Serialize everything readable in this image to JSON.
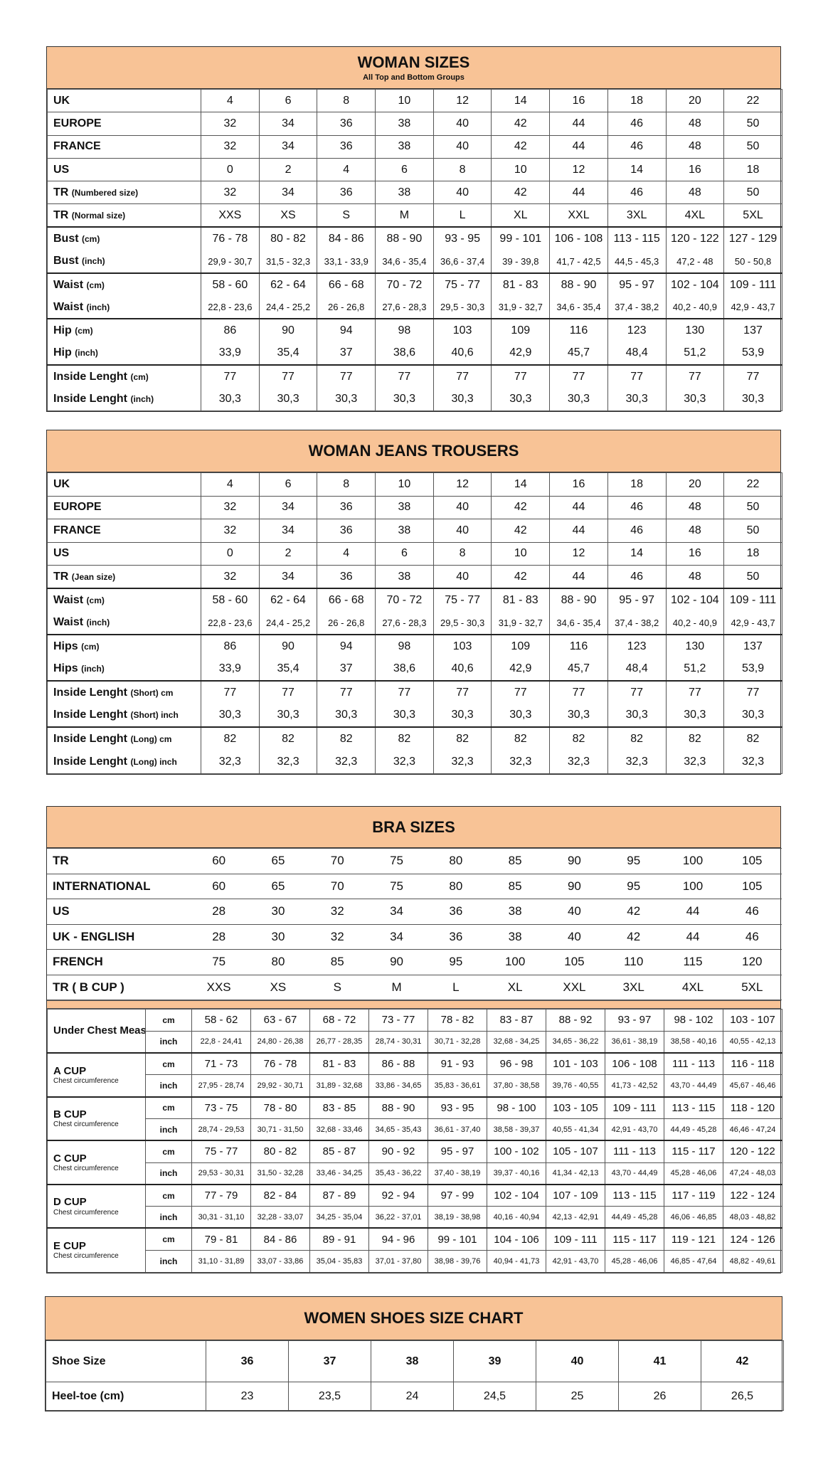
{
  "woman_sizes": {
    "title": "WOMAN SIZES",
    "subtitle": "All Top and Bottom Groups",
    "groups": [
      [
        {
          "label": "UK",
          "values": [
            "4",
            "6",
            "8",
            "10",
            "12",
            "14",
            "16",
            "18",
            "20",
            "22"
          ]
        }
      ],
      [
        {
          "label": "EUROPE",
          "values": [
            "32",
            "34",
            "36",
            "38",
            "40",
            "42",
            "44",
            "46",
            "48",
            "50"
          ]
        }
      ],
      [
        {
          "label": "FRANCE",
          "values": [
            "32",
            "34",
            "36",
            "38",
            "40",
            "42",
            "44",
            "46",
            "48",
            "50"
          ]
        }
      ],
      [
        {
          "label": "US",
          "values": [
            "0",
            "2",
            "4",
            "6",
            "8",
            "10",
            "12",
            "14",
            "16",
            "18"
          ]
        }
      ],
      [
        {
          "label": "TR",
          "unit": "(Numbered size)",
          "values": [
            "32",
            "34",
            "36",
            "38",
            "40",
            "42",
            "44",
            "46",
            "48",
            "50"
          ]
        }
      ],
      [
        {
          "label": "TR",
          "unit": "(Normal size)",
          "values": [
            "XXS",
            "XS",
            "S",
            "M",
            "L",
            "XL",
            "XXL",
            "3XL",
            "4XL",
            "5XL"
          ]
        }
      ],
      [
        {
          "label": "Bust",
          "unit": "(cm)",
          "values": [
            "76 - 78",
            "80 - 82",
            "84 - 86",
            "88 - 90",
            "93 - 95",
            "99 - 101",
            "106 - 108",
            "113 - 115",
            "120 - 122",
            "127 - 129"
          ]
        },
        {
          "label": "Bust",
          "unit": "(inch)",
          "small": true,
          "values": [
            "29,9 - 30,7",
            "31,5 - 32,3",
            "33,1 - 33,9",
            "34,6 - 35,4",
            "36,6 - 37,4",
            "39 - 39,8",
            "41,7 - 42,5",
            "44,5 - 45,3",
            "47,2 - 48",
            "50 - 50,8"
          ]
        }
      ],
      [
        {
          "label": "Waist",
          "unit": "(cm)",
          "values": [
            "58 - 60",
            "62 - 64",
            "66 - 68",
            "70 - 72",
            "75 - 77",
            "81 - 83",
            "88 - 90",
            "95 - 97",
            "102 - 104",
            "109 - 111"
          ]
        },
        {
          "label": "Waist",
          "unit": "(inch)",
          "small": true,
          "values": [
            "22,8 - 23,6",
            "24,4 - 25,2",
            "26 - 26,8",
            "27,6 - 28,3",
            "29,5 - 30,3",
            "31,9 - 32,7",
            "34,6 - 35,4",
            "37,4 - 38,2",
            "40,2 - 40,9",
            "42,9 - 43,7"
          ]
        }
      ],
      [
        {
          "label": "Hip",
          "unit": "(cm)",
          "values": [
            "86",
            "90",
            "94",
            "98",
            "103",
            "109",
            "116",
            "123",
            "130",
            "137"
          ]
        },
        {
          "label": "Hip",
          "unit": "(inch)",
          "values": [
            "33,9",
            "35,4",
            "37",
            "38,6",
            "40,6",
            "42,9",
            "45,7",
            "48,4",
            "51,2",
            "53,9"
          ]
        }
      ],
      [
        {
          "label": "Inside Lenght",
          "unit": "(cm)",
          "values": [
            "77",
            "77",
            "77",
            "77",
            "77",
            "77",
            "77",
            "77",
            "77",
            "77"
          ]
        },
        {
          "label": "Inside Lenght",
          "unit": "(inch)",
          "values": [
            "30,3",
            "30,3",
            "30,3",
            "30,3",
            "30,3",
            "30,3",
            "30,3",
            "30,3",
            "30,3",
            "30,3"
          ]
        }
      ]
    ]
  },
  "jeans": {
    "title": "WOMAN JEANS TROUSERS",
    "groups": [
      [
        {
          "label": "UK",
          "values": [
            "4",
            "6",
            "8",
            "10",
            "12",
            "14",
            "16",
            "18",
            "20",
            "22"
          ]
        }
      ],
      [
        {
          "label": "EUROPE",
          "values": [
            "32",
            "34",
            "36",
            "38",
            "40",
            "42",
            "44",
            "46",
            "48",
            "50"
          ]
        }
      ],
      [
        {
          "label": "FRANCE",
          "values": [
            "32",
            "34",
            "36",
            "38",
            "40",
            "42",
            "44",
            "46",
            "48",
            "50"
          ]
        }
      ],
      [
        {
          "label": "US",
          "values": [
            "0",
            "2",
            "4",
            "6",
            "8",
            "10",
            "12",
            "14",
            "16",
            "18"
          ]
        }
      ],
      [
        {
          "label": "TR",
          "unit": "(Jean size)",
          "values": [
            "32",
            "34",
            "36",
            "38",
            "40",
            "42",
            "44",
            "46",
            "48",
            "50"
          ]
        }
      ],
      [
        {
          "label": "Waist",
          "unit": "(cm)",
          "values": [
            "58 - 60",
            "62 - 64",
            "66 - 68",
            "70 - 72",
            "75 - 77",
            "81 - 83",
            "88 - 90",
            "95 - 97",
            "102 - 104",
            "109 - 111"
          ]
        },
        {
          "label": "Waist",
          "unit": "(inch)",
          "small": true,
          "values": [
            "22,8 - 23,6",
            "24,4 - 25,2",
            "26 - 26,8",
            "27,6 - 28,3",
            "29,5 - 30,3",
            "31,9 - 32,7",
            "34,6 - 35,4",
            "37,4 - 38,2",
            "40,2 - 40,9",
            "42,9 - 43,7"
          ]
        }
      ],
      [
        {
          "label": "Hips",
          "unit": "(cm)",
          "values": [
            "86",
            "90",
            "94",
            "98",
            "103",
            "109",
            "116",
            "123",
            "130",
            "137"
          ]
        },
        {
          "label": "Hips",
          "unit": "(inch)",
          "values": [
            "33,9",
            "35,4",
            "37",
            "38,6",
            "40,6",
            "42,9",
            "45,7",
            "48,4",
            "51,2",
            "53,9"
          ]
        }
      ],
      [
        {
          "label": "Inside Lenght",
          "unit": "(Short) cm",
          "values": [
            "77",
            "77",
            "77",
            "77",
            "77",
            "77",
            "77",
            "77",
            "77",
            "77"
          ]
        },
        {
          "label": "Inside Lenght",
          "unit": "(Short) inch",
          "values": [
            "30,3",
            "30,3",
            "30,3",
            "30,3",
            "30,3",
            "30,3",
            "30,3",
            "30,3",
            "30,3",
            "30,3"
          ]
        }
      ],
      [
        {
          "label": "Inside Lenght",
          "unit": "(Long) cm",
          "values": [
            "82",
            "82",
            "82",
            "82",
            "82",
            "82",
            "82",
            "82",
            "82",
            "82"
          ]
        },
        {
          "label": "Inside Lenght",
          "unit": "(Long) inch",
          "values": [
            "32,3",
            "32,3",
            "32,3",
            "32,3",
            "32,3",
            "32,3",
            "32,3",
            "32,3",
            "32,3",
            "32,3"
          ]
        }
      ]
    ]
  },
  "bra": {
    "title": "BRA SIZES",
    "top_rows": [
      {
        "label": "TR",
        "values": [
          "60",
          "65",
          "70",
          "75",
          "80",
          "85",
          "90",
          "95",
          "100",
          "105"
        ]
      },
      {
        "label": "INTERNATIONAL",
        "values": [
          "60",
          "65",
          "70",
          "75",
          "80",
          "85",
          "90",
          "95",
          "100",
          "105"
        ]
      },
      {
        "label": "US",
        "values": [
          "28",
          "30",
          "32",
          "34",
          "36",
          "38",
          "40",
          "42",
          "44",
          "46"
        ]
      },
      {
        "label": "UK - ENGLISH",
        "values": [
          "28",
          "30",
          "32",
          "34",
          "36",
          "38",
          "40",
          "42",
          "44",
          "46"
        ]
      },
      {
        "label": "FRENCH",
        "values": [
          "75",
          "80",
          "85",
          "90",
          "95",
          "100",
          "105",
          "110",
          "115",
          "120"
        ]
      },
      {
        "label": "TR ( B CUP )",
        "values": [
          "XXS",
          "XS",
          "S",
          "M",
          "L",
          "XL",
          "XXL",
          "3XL",
          "4XL",
          "5XL"
        ]
      }
    ],
    "cups": [
      {
        "label": "Under Chest Measurement",
        "cm_unit": "cm",
        "inch_unit": "inch",
        "cm": [
          "58 - 62",
          "63 - 67",
          "68 - 72",
          "73 - 77",
          "78 - 82",
          "83 - 87",
          "88 - 92",
          "93 - 97",
          "98 - 102",
          "103 - 107"
        ],
        "inch": [
          "22,8 - 24,41",
          "24,80 - 26,38",
          "26,77 - 28,35",
          "28,74 - 30,31",
          "30,71 - 32,28",
          "32,68 - 34,25",
          "34,65 - 36,22",
          "36,61 - 38,19",
          "38,58 - 40,16",
          "40,55 - 42,13"
        ]
      },
      {
        "label": "A CUP",
        "sub": "Chest circumference",
        "cm_unit": "cm",
        "inch_unit": "inch",
        "cm": [
          "71 - 73",
          "76 - 78",
          "81 - 83",
          "86 - 88",
          "91 - 93",
          "96 - 98",
          "101 - 103",
          "106 - 108",
          "111 - 113",
          "116 - 118"
        ],
        "inch": [
          "27,95 - 28,74",
          "29,92 - 30,71",
          "31,89 - 32,68",
          "33,86 - 34,65",
          "35,83 - 36,61",
          "37,80 - 38,58",
          "39,76 - 40,55",
          "41,73 - 42,52",
          "43,70 - 44,49",
          "45,67 - 46,46"
        ]
      },
      {
        "label": "B CUP",
        "sub": "Chest circumference",
        "cm_unit": "cm",
        "inch_unit": "inch",
        "cm": [
          "73 - 75",
          "78 - 80",
          "83 - 85",
          "88 - 90",
          "93 - 95",
          "98 - 100",
          "103 - 105",
          "109 - 111",
          "113 - 115",
          "118 - 120"
        ],
        "inch": [
          "28,74 - 29,53",
          "30,71 - 31,50",
          "32,68 - 33,46",
          "34,65 - 35,43",
          "36,61 - 37,40",
          "38,58 - 39,37",
          "40,55 - 41,34",
          "42,91 - 43,70",
          "44,49 - 45,28",
          "46,46 - 47,24"
        ]
      },
      {
        "label": "C CUP",
        "sub": "Chest circumference",
        "cm_unit": "cm",
        "inch_unit": "inch",
        "cm": [
          "75 - 77",
          "80 - 82",
          "85 - 87",
          "90 - 92",
          "95 - 97",
          "100 - 102",
          "105 - 107",
          "111 - 113",
          "115 - 117",
          "120 - 122"
        ],
        "inch": [
          "29,53 - 30,31",
          "31,50 - 32,28",
          "33,46 - 34,25",
          "35,43 - 36,22",
          "37,40 - 38,19",
          "39,37 - 40,16",
          "41,34 - 42,13",
          "43,70 - 44,49",
          "45,28 - 46,06",
          "47,24 - 48,03"
        ]
      },
      {
        "label": "D CUP",
        "sub": "Chest circumference",
        "cm_unit": "cm",
        "inch_unit": "inch",
        "cm": [
          "77 - 79",
          "82 - 84",
          "87 - 89",
          "92 - 94",
          "97 - 99",
          "102 - 104",
          "107 - 109",
          "113 - 115",
          "117 - 119",
          "122 - 124"
        ],
        "inch": [
          "30,31 - 31,10",
          "32,28 - 33,07",
          "34,25 - 35,04",
          "36,22 - 37,01",
          "38,19 - 38,98",
          "40,16 - 40,94",
          "42,13 - 42,91",
          "44,49 - 45,28",
          "46,06 - 46,85",
          "48,03 - 48,82"
        ]
      },
      {
        "label": "E CUP",
        "sub": "Chest circumference",
        "cm_unit": "cm",
        "inch_unit": "inch",
        "cm": [
          "79 - 81",
          "84 - 86",
          "89 - 91",
          "94 - 96",
          "99 - 101",
          "104 - 106",
          "109 - 111",
          "115 - 117",
          "119 - 121",
          "124 - 126"
        ],
        "inch": [
          "31,10 - 31,89",
          "33,07 - 33,86",
          "35,04 - 35,83",
          "37,01 - 37,80",
          "38,98 - 39,76",
          "40,94 - 41,73",
          "42,91 - 43,70",
          "45,28 - 46,06",
          "46,85 - 47,64",
          "48,82 - 49,61"
        ]
      }
    ]
  },
  "shoes": {
    "title": "WOMEN SHOES SIZE CHART",
    "rows": [
      {
        "label": "Shoe Size",
        "bold": true,
        "values": [
          "36",
          "37",
          "38",
          "39",
          "40",
          "41",
          "42"
        ]
      },
      {
        "label": "Heel-toe (cm)",
        "values": [
          "23",
          "23,5",
          "24",
          "24,5",
          "25",
          "26",
          "26,5"
        ]
      }
    ]
  },
  "colors": {
    "header_band": "#f8c396"
  }
}
